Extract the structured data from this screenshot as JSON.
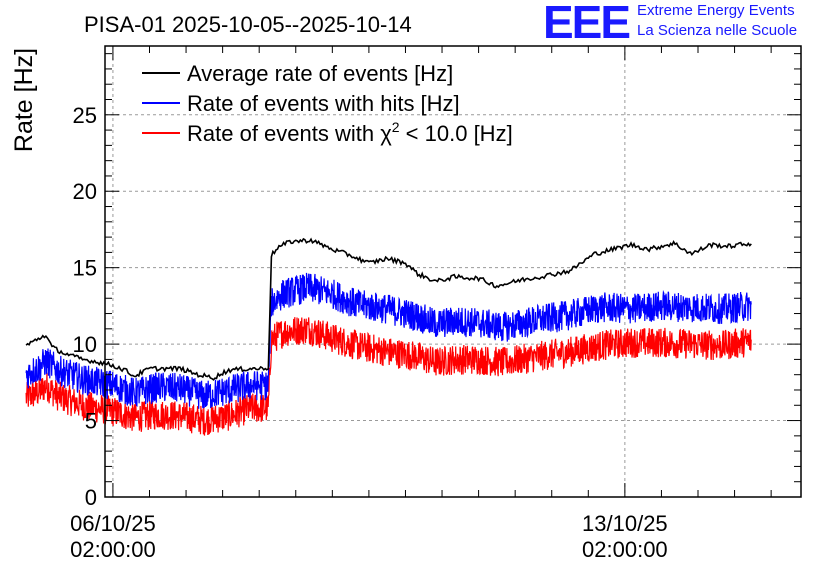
{
  "chart_data": {
    "type": "line",
    "title": "PISA-01 2025-10-05--2025-10-14",
    "ylabel": "Rate [Hz]",
    "xlabel": "",
    "ylim": [
      0,
      29.5
    ],
    "yticks": [
      0,
      5,
      10,
      15,
      20,
      25
    ],
    "xrange_hours": [
      -2.6,
      225.8
    ],
    "xticks": [
      {
        "hours": 0,
        "date": "06/10/25",
        "time": "02:00:00"
      },
      {
        "hours": 168,
        "date": "13/10/25",
        "time": "02:00:00"
      }
    ],
    "grid": true,
    "legend_position": "top-left",
    "data_start_hours": -28.5,
    "data_end_hours": 209.5,
    "series": [
      {
        "name": "Average rate of events [Hz]",
        "color": "#000000",
        "noise": 0.15,
        "keypoints": [
          [
            -28.5,
            9.9
          ],
          [
            -25,
            10.3
          ],
          [
            -22,
            10.6
          ],
          [
            -20,
            9.8
          ],
          [
            -16,
            9.4
          ],
          [
            -10,
            9.0
          ],
          [
            -4,
            8.8
          ],
          [
            0,
            8.6
          ],
          [
            4,
            8.3
          ],
          [
            7,
            7.9
          ],
          [
            12,
            8.4
          ],
          [
            22,
            8.4
          ],
          [
            28,
            8.0
          ],
          [
            33,
            7.8
          ],
          [
            38,
            8.3
          ],
          [
            45,
            8.4
          ],
          [
            50,
            8.4
          ],
          [
            51,
            8.5
          ],
          [
            52,
            15.8
          ],
          [
            54,
            16.3
          ],
          [
            58,
            16.7
          ],
          [
            65,
            16.8
          ],
          [
            72,
            16.2
          ],
          [
            78,
            15.8
          ],
          [
            84,
            15.3
          ],
          [
            90,
            15.6
          ],
          [
            96,
            15.3
          ],
          [
            100,
            14.6
          ],
          [
            106,
            14.1
          ],
          [
            112,
            14.4
          ],
          [
            120,
            14.3
          ],
          [
            126,
            13.8
          ],
          [
            134,
            14.2
          ],
          [
            140,
            14.4
          ],
          [
            150,
            14.8
          ],
          [
            158,
            15.9
          ],
          [
            164,
            16.2
          ],
          [
            170,
            16.5
          ],
          [
            176,
            16.2
          ],
          [
            184,
            16.6
          ],
          [
            190,
            15.9
          ],
          [
            196,
            16.5
          ],
          [
            202,
            16.4
          ],
          [
            209.5,
            16.6
          ]
        ]
      },
      {
        "name": "Rate of events with hits [Hz]",
        "color": "#0000ff",
        "noise": 1.0,
        "keypoints": [
          [
            -28.5,
            8.0
          ],
          [
            -24,
            8.5
          ],
          [
            -22,
            8.9
          ],
          [
            -18,
            8.3
          ],
          [
            -10,
            7.7
          ],
          [
            0,
            7.3
          ],
          [
            7,
            6.8
          ],
          [
            15,
            7.2
          ],
          [
            22,
            7.1
          ],
          [
            30,
            6.6
          ],
          [
            38,
            7.0
          ],
          [
            45,
            7.3
          ],
          [
            51,
            7.3
          ],
          [
            52,
            12.7
          ],
          [
            56,
            13.3
          ],
          [
            64,
            13.7
          ],
          [
            72,
            13.3
          ],
          [
            80,
            12.6
          ],
          [
            90,
            12.3
          ],
          [
            100,
            11.8
          ],
          [
            106,
            11.3
          ],
          [
            112,
            11.5
          ],
          [
            120,
            11.4
          ],
          [
            128,
            11.1
          ],
          [
            140,
            11.6
          ],
          [
            150,
            11.9
          ],
          [
            160,
            12.4
          ],
          [
            170,
            12.3
          ],
          [
            180,
            12.5
          ],
          [
            190,
            12.4
          ],
          [
            200,
            12.3
          ],
          [
            209.5,
            12.5
          ]
        ]
      },
      {
        "name": "Rate of events with χ² < 10.0 [Hz]",
        "legend_text": "Rate of events with χ",
        "legend_sup": "2",
        "legend_tail": " < 10.0 [Hz]",
        "color": "#ff0000",
        "noise": 1.0,
        "keypoints": [
          [
            -28.5,
            6.5
          ],
          [
            -24,
            6.9
          ],
          [
            -22,
            7.3
          ],
          [
            -18,
            6.6
          ],
          [
            -10,
            6.0
          ],
          [
            0,
            5.6
          ],
          [
            7,
            5.2
          ],
          [
            15,
            5.4
          ],
          [
            22,
            5.3
          ],
          [
            30,
            5.0
          ],
          [
            38,
            5.3
          ],
          [
            45,
            5.8
          ],
          [
            51,
            5.8
          ],
          [
            52,
            10.3
          ],
          [
            56,
            10.8
          ],
          [
            64,
            11.0
          ],
          [
            72,
            10.4
          ],
          [
            80,
            9.9
          ],
          [
            90,
            9.5
          ],
          [
            100,
            9.2
          ],
          [
            106,
            8.8
          ],
          [
            112,
            9.0
          ],
          [
            120,
            9.0
          ],
          [
            128,
            8.8
          ],
          [
            140,
            9.2
          ],
          [
            150,
            9.5
          ],
          [
            160,
            9.9
          ],
          [
            170,
            10.1
          ],
          [
            180,
            10.1
          ],
          [
            190,
            10.0
          ],
          [
            200,
            9.9
          ],
          [
            209.5,
            10.2
          ]
        ]
      }
    ]
  },
  "branding": {
    "logo": "EEE",
    "org_line1": "Extreme Energy Events",
    "org_line2": "La Scienza nelle Scuole",
    "color": "#1a1aff"
  }
}
